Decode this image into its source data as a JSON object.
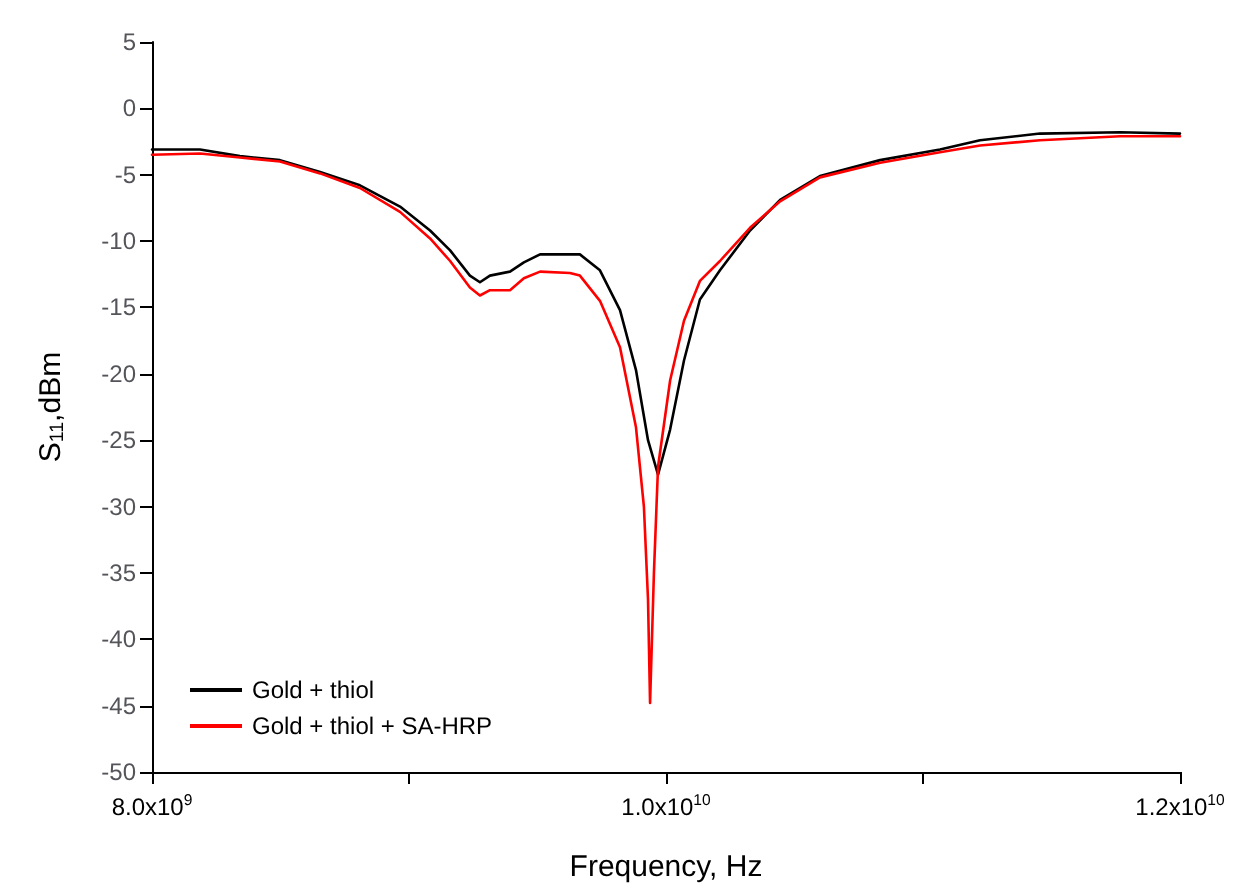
{
  "chart_data": {
    "type": "line",
    "xlabel": "Frequency, Hz",
    "ylabel": "S$_{11}$,dBm",
    "xlim": [
      8000000000,
      12000000000
    ],
    "xticks": [
      {
        "value": 8000000000,
        "label": "8.0x10$^{9}$"
      },
      {
        "value": 9000000000,
        "label": null
      },
      {
        "value": 10000000000,
        "label": "1.0x10$^{10}$"
      },
      {
        "value": 11000000000,
        "label": null
      },
      {
        "value": 12000000000,
        "label": "1.2x10$^{10}$"
      }
    ],
    "ylim": [
      -50,
      5
    ],
    "yticks": [
      -50,
      -45,
      -40,
      -35,
      -30,
      -25,
      -20,
      -15,
      -10,
      -5,
      0,
      5
    ],
    "grid": false,
    "legend": "bottom left",
    "marker": "none",
    "line_style": "solid",
    "series": [
      {
        "name": "Gold + thiol",
        "color": "#000000",
        "x": [
          8000000000,
          8187000000,
          8342000000,
          8498000000,
          8654000000,
          8809000000,
          8965000000,
          9082000000,
          9160000000,
          9237000000,
          9276000000,
          9315000000,
          9393000000,
          9447000000,
          9510000000,
          9626000000,
          9665000000,
          9743000000,
          9821000000,
          9883000000,
          9930000000,
          9969000000,
          10016000000,
          10070000000,
          10132000000,
          10210000000,
          10327000000,
          10444000000,
          10599000000,
          10833000000,
          11066000000,
          11222000000,
          11455000000,
          11767000000,
          12000000000
        ],
        "values": [
          -3.1,
          -3.1,
          -3.6,
          -3.9,
          -4.8,
          -5.8,
          -7.4,
          -9.2,
          -10.7,
          -12.6,
          -13.1,
          -12.6,
          -12.3,
          -11.6,
          -11.0,
          -11.0,
          -11.0,
          -12.2,
          -15.2,
          -19.7,
          -25.0,
          -27.6,
          -24.2,
          -19.0,
          -14.4,
          -12.2,
          -9.2,
          -6.9,
          -5.1,
          -3.9,
          -3.1,
          -2.4,
          -1.9,
          -1.8,
          -1.9
        ]
      },
      {
        "name": "Gold + thiol + SA-HRP",
        "color": "#ff0000",
        "x": [
          8000000000,
          8187000000,
          8342000000,
          8498000000,
          8654000000,
          8809000000,
          8965000000,
          9082000000,
          9160000000,
          9237000000,
          9276000000,
          9315000000,
          9393000000,
          9447000000,
          9510000000,
          9626000000,
          9665000000,
          9743000000,
          9821000000,
          9883000000,
          9914000000,
          9930000000,
          9938000000,
          9953000000,
          9969000000,
          10016000000,
          10070000000,
          10132000000,
          10210000000,
          10327000000,
          10444000000,
          10599000000,
          10833000000,
          11066000000,
          11222000000,
          11455000000,
          11767000000,
          12000000000
        ],
        "values": [
          -3.5,
          -3.4,
          -3.7,
          -4.0,
          -4.9,
          -6.0,
          -7.8,
          -9.8,
          -11.5,
          -13.5,
          -14.1,
          -13.7,
          -13.7,
          -12.8,
          -12.3,
          -12.4,
          -12.6,
          -14.5,
          -18.0,
          -24.0,
          -30.0,
          -37.0,
          -44.8,
          -35.0,
          -27.0,
          -20.5,
          -16.0,
          -13.0,
          -11.5,
          -9.0,
          -7.0,
          -5.2,
          -4.1,
          -3.3,
          -2.8,
          -2.4,
          -2.1,
          -2.1
        ]
      }
    ]
  }
}
